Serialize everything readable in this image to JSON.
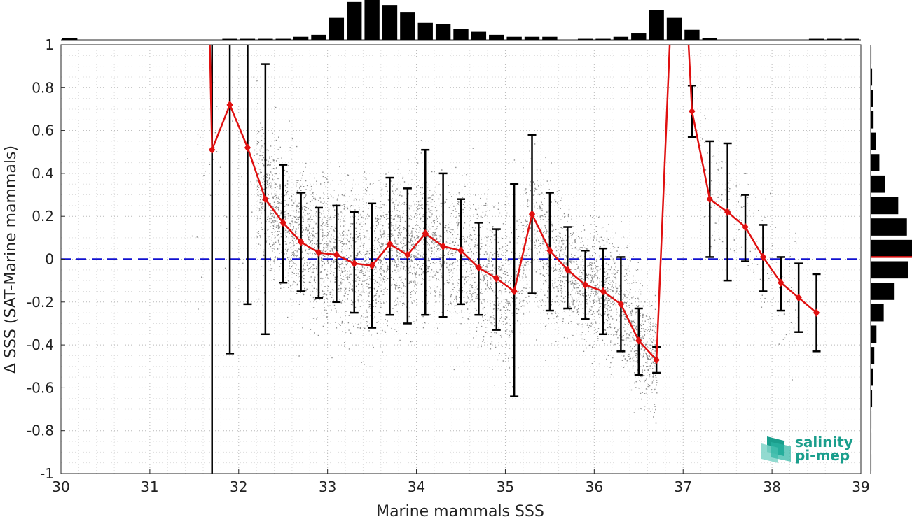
{
  "chart_data": {
    "type": "line",
    "xlabel": "Marine mammals SSS",
    "ylabel": "Δ SSS (SAT-Marine mammals)",
    "xlim": [
      30,
      39
    ],
    "ylim": [
      -1,
      1
    ],
    "x_ticks": [
      "30",
      "31",
      "32",
      "33",
      "34",
      "35",
      "36",
      "37",
      "38",
      "39"
    ],
    "y_ticks": [
      "-1",
      "-0.8",
      "-0.6",
      "-0.4",
      "-0.2",
      "0",
      "0.2",
      "0.4",
      "0.6",
      "0.8",
      "1"
    ],
    "grid": true,
    "zero_line": {
      "y": 0,
      "color": "#1010d0",
      "style": "dashed"
    },
    "colors": {
      "mean": "#e01010",
      "error_bars": "#000000",
      "scatter": "#888888",
      "histogram": "#000000"
    },
    "series": [
      {
        "x": [
          31.7,
          31.9,
          32.1,
          32.3,
          32.5,
          32.7,
          32.9,
          33.1,
          33.3,
          33.5,
          33.7,
          33.9,
          34.1,
          34.3,
          34.5,
          34.7,
          34.9,
          35.1,
          35.3,
          35.5,
          35.7,
          35.9,
          36.1,
          36.3,
          36.5,
          36.7,
          37.1,
          37.3,
          37.5,
          37.7,
          37.9,
          38.1,
          38.3,
          38.5
        ],
        "y": [
          0.51,
          0.72,
          0.52,
          0.28,
          0.17,
          0.08,
          0.03,
          0.02,
          -0.02,
          -0.03,
          0.07,
          0.02,
          0.12,
          0.06,
          0.04,
          -0.04,
          -0.09,
          -0.15,
          0.21,
          0.04,
          -0.05,
          -0.12,
          -0.15,
          -0.21,
          -0.38,
          -0.47,
          0.69,
          0.28,
          0.22,
          0.15,
          0.01,
          -0.11,
          -0.18,
          -0.25
        ],
        "err_low": [
          -1.2,
          -0.44,
          -0.21,
          -0.35,
          -0.11,
          -0.15,
          -0.18,
          -0.2,
          -0.25,
          -0.32,
          -0.26,
          -0.3,
          -0.26,
          -0.27,
          -0.21,
          -0.26,
          -0.33,
          -0.64,
          -0.16,
          -0.24,
          -0.23,
          -0.28,
          -0.35,
          -0.43,
          -0.54,
          -0.53,
          0.57,
          0.01,
          -0.1,
          -0.01,
          -0.15,
          -0.24,
          -0.34,
          -0.43
        ],
        "err_high": [
          1.2,
          1.2,
          1.2,
          0.91,
          0.44,
          0.31,
          0.24,
          0.25,
          0.22,
          0.26,
          0.38,
          0.33,
          0.51,
          0.4,
          0.28,
          0.17,
          0.14,
          0.35,
          0.58,
          0.31,
          0.15,
          0.04,
          0.05,
          0.01,
          -0.23,
          -0.41,
          0.81,
          0.55,
          0.54,
          0.3,
          0.16,
          0.01,
          -0.02,
          -0.07
        ]
      }
    ],
    "gap_segment": {
      "x": [
        36.7,
        36.9,
        37.0,
        37.1
      ],
      "y": [
        -0.47,
        1.5,
        1.5,
        0.69
      ]
    },
    "start_segment": {
      "x": [
        31.65,
        31.7
      ],
      "y": [
        1.5,
        0.51
      ]
    },
    "top_histogram": {
      "bin_start": 30.0,
      "bin_width": 0.2,
      "values": [
        2,
        0,
        0,
        0,
        0,
        0,
        0,
        0,
        0,
        1,
        1,
        1,
        1,
        3,
        5,
        22,
        38,
        40,
        35,
        28,
        17,
        16,
        11,
        8,
        5,
        3,
        3,
        3,
        0,
        1,
        1,
        3,
        7,
        30,
        22,
        10,
        2,
        0,
        0,
        0,
        0,
        0,
        1,
        1,
        1,
        0
      ]
    },
    "right_histogram": {
      "bin_edges_y": [
        -1.0,
        -0.9,
        -0.8,
        -0.7,
        -0.6,
        -0.5,
        -0.4,
        -0.3,
        -0.2,
        -0.1,
        0.0,
        0.1,
        0.2,
        0.3,
        0.4,
        0.5,
        0.6,
        0.7,
        0.8,
        0.9,
        1.0
      ],
      "values": [
        1,
        1,
        1,
        2,
        3,
        5,
        8,
        18,
        33,
        52,
        57,
        50,
        38,
        20,
        12,
        7,
        4,
        3,
        2,
        1
      ],
      "median": 0.01
    }
  },
  "logo": {
    "line1": "salinity",
    "line2": "pi-mep"
  }
}
